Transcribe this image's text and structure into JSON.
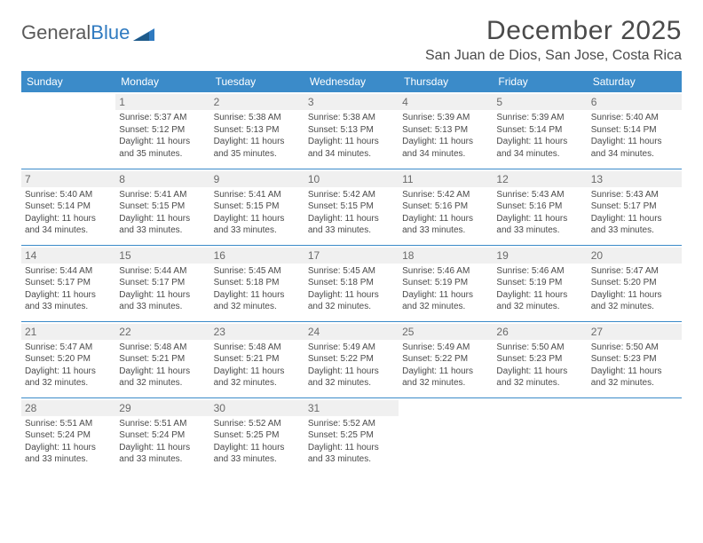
{
  "brand": {
    "part1": "General",
    "part2": "Blue"
  },
  "title": "December 2025",
  "location": "San Juan de Dios, San Jose, Costa Rica",
  "colors": {
    "header_bg": "#3b8bc9",
    "header_text": "#ffffff",
    "daynum_bg": "#f0f0f0",
    "daynum_text": "#6a6a6a",
    "body_text": "#4a4a4a",
    "rule": "#3b8bc9",
    "logo_gray": "#5a5a5a",
    "logo_blue": "#2f7ac0",
    "background": "#ffffff"
  },
  "typography": {
    "title_fontsize": 30,
    "location_fontsize": 16,
    "dayhead_fontsize": 12,
    "daynum_fontsize": 12,
    "cell_fontsize": 10
  },
  "day_headers": [
    "Sunday",
    "Monday",
    "Tuesday",
    "Wednesday",
    "Thursday",
    "Friday",
    "Saturday"
  ],
  "weeks": [
    [
      {
        "n": "",
        "sr": "",
        "ss": "",
        "d1": "",
        "d2": "",
        "empty": true
      },
      {
        "n": "1",
        "sr": "Sunrise: 5:37 AM",
        "ss": "Sunset: 5:12 PM",
        "d1": "Daylight: 11 hours",
        "d2": "and 35 minutes."
      },
      {
        "n": "2",
        "sr": "Sunrise: 5:38 AM",
        "ss": "Sunset: 5:13 PM",
        "d1": "Daylight: 11 hours",
        "d2": "and 35 minutes."
      },
      {
        "n": "3",
        "sr": "Sunrise: 5:38 AM",
        "ss": "Sunset: 5:13 PM",
        "d1": "Daylight: 11 hours",
        "d2": "and 34 minutes."
      },
      {
        "n": "4",
        "sr": "Sunrise: 5:39 AM",
        "ss": "Sunset: 5:13 PM",
        "d1": "Daylight: 11 hours",
        "d2": "and 34 minutes."
      },
      {
        "n": "5",
        "sr": "Sunrise: 5:39 AM",
        "ss": "Sunset: 5:14 PM",
        "d1": "Daylight: 11 hours",
        "d2": "and 34 minutes."
      },
      {
        "n": "6",
        "sr": "Sunrise: 5:40 AM",
        "ss": "Sunset: 5:14 PM",
        "d1": "Daylight: 11 hours",
        "d2": "and 34 minutes."
      }
    ],
    [
      {
        "n": "7",
        "sr": "Sunrise: 5:40 AM",
        "ss": "Sunset: 5:14 PM",
        "d1": "Daylight: 11 hours",
        "d2": "and 34 minutes."
      },
      {
        "n": "8",
        "sr": "Sunrise: 5:41 AM",
        "ss": "Sunset: 5:15 PM",
        "d1": "Daylight: 11 hours",
        "d2": "and 33 minutes."
      },
      {
        "n": "9",
        "sr": "Sunrise: 5:41 AM",
        "ss": "Sunset: 5:15 PM",
        "d1": "Daylight: 11 hours",
        "d2": "and 33 minutes."
      },
      {
        "n": "10",
        "sr": "Sunrise: 5:42 AM",
        "ss": "Sunset: 5:15 PM",
        "d1": "Daylight: 11 hours",
        "d2": "and 33 minutes."
      },
      {
        "n": "11",
        "sr": "Sunrise: 5:42 AM",
        "ss": "Sunset: 5:16 PM",
        "d1": "Daylight: 11 hours",
        "d2": "and 33 minutes."
      },
      {
        "n": "12",
        "sr": "Sunrise: 5:43 AM",
        "ss": "Sunset: 5:16 PM",
        "d1": "Daylight: 11 hours",
        "d2": "and 33 minutes."
      },
      {
        "n": "13",
        "sr": "Sunrise: 5:43 AM",
        "ss": "Sunset: 5:17 PM",
        "d1": "Daylight: 11 hours",
        "d2": "and 33 minutes."
      }
    ],
    [
      {
        "n": "14",
        "sr": "Sunrise: 5:44 AM",
        "ss": "Sunset: 5:17 PM",
        "d1": "Daylight: 11 hours",
        "d2": "and 33 minutes."
      },
      {
        "n": "15",
        "sr": "Sunrise: 5:44 AM",
        "ss": "Sunset: 5:17 PM",
        "d1": "Daylight: 11 hours",
        "d2": "and 33 minutes."
      },
      {
        "n": "16",
        "sr": "Sunrise: 5:45 AM",
        "ss": "Sunset: 5:18 PM",
        "d1": "Daylight: 11 hours",
        "d2": "and 32 minutes."
      },
      {
        "n": "17",
        "sr": "Sunrise: 5:45 AM",
        "ss": "Sunset: 5:18 PM",
        "d1": "Daylight: 11 hours",
        "d2": "and 32 minutes."
      },
      {
        "n": "18",
        "sr": "Sunrise: 5:46 AM",
        "ss": "Sunset: 5:19 PM",
        "d1": "Daylight: 11 hours",
        "d2": "and 32 minutes."
      },
      {
        "n": "19",
        "sr": "Sunrise: 5:46 AM",
        "ss": "Sunset: 5:19 PM",
        "d1": "Daylight: 11 hours",
        "d2": "and 32 minutes."
      },
      {
        "n": "20",
        "sr": "Sunrise: 5:47 AM",
        "ss": "Sunset: 5:20 PM",
        "d1": "Daylight: 11 hours",
        "d2": "and 32 minutes."
      }
    ],
    [
      {
        "n": "21",
        "sr": "Sunrise: 5:47 AM",
        "ss": "Sunset: 5:20 PM",
        "d1": "Daylight: 11 hours",
        "d2": "and 32 minutes."
      },
      {
        "n": "22",
        "sr": "Sunrise: 5:48 AM",
        "ss": "Sunset: 5:21 PM",
        "d1": "Daylight: 11 hours",
        "d2": "and 32 minutes."
      },
      {
        "n": "23",
        "sr": "Sunrise: 5:48 AM",
        "ss": "Sunset: 5:21 PM",
        "d1": "Daylight: 11 hours",
        "d2": "and 32 minutes."
      },
      {
        "n": "24",
        "sr": "Sunrise: 5:49 AM",
        "ss": "Sunset: 5:22 PM",
        "d1": "Daylight: 11 hours",
        "d2": "and 32 minutes."
      },
      {
        "n": "25",
        "sr": "Sunrise: 5:49 AM",
        "ss": "Sunset: 5:22 PM",
        "d1": "Daylight: 11 hours",
        "d2": "and 32 minutes."
      },
      {
        "n": "26",
        "sr": "Sunrise: 5:50 AM",
        "ss": "Sunset: 5:23 PM",
        "d1": "Daylight: 11 hours",
        "d2": "and 32 minutes."
      },
      {
        "n": "27",
        "sr": "Sunrise: 5:50 AM",
        "ss": "Sunset: 5:23 PM",
        "d1": "Daylight: 11 hours",
        "d2": "and 32 minutes."
      }
    ],
    [
      {
        "n": "28",
        "sr": "Sunrise: 5:51 AM",
        "ss": "Sunset: 5:24 PM",
        "d1": "Daylight: 11 hours",
        "d2": "and 33 minutes."
      },
      {
        "n": "29",
        "sr": "Sunrise: 5:51 AM",
        "ss": "Sunset: 5:24 PM",
        "d1": "Daylight: 11 hours",
        "d2": "and 33 minutes."
      },
      {
        "n": "30",
        "sr": "Sunrise: 5:52 AM",
        "ss": "Sunset: 5:25 PM",
        "d1": "Daylight: 11 hours",
        "d2": "and 33 minutes."
      },
      {
        "n": "31",
        "sr": "Sunrise: 5:52 AM",
        "ss": "Sunset: 5:25 PM",
        "d1": "Daylight: 11 hours",
        "d2": "and 33 minutes."
      },
      {
        "n": "",
        "sr": "",
        "ss": "",
        "d1": "",
        "d2": "",
        "empty": true
      },
      {
        "n": "",
        "sr": "",
        "ss": "",
        "d1": "",
        "d2": "",
        "empty": true
      },
      {
        "n": "",
        "sr": "",
        "ss": "",
        "d1": "",
        "d2": "",
        "empty": true
      }
    ]
  ]
}
